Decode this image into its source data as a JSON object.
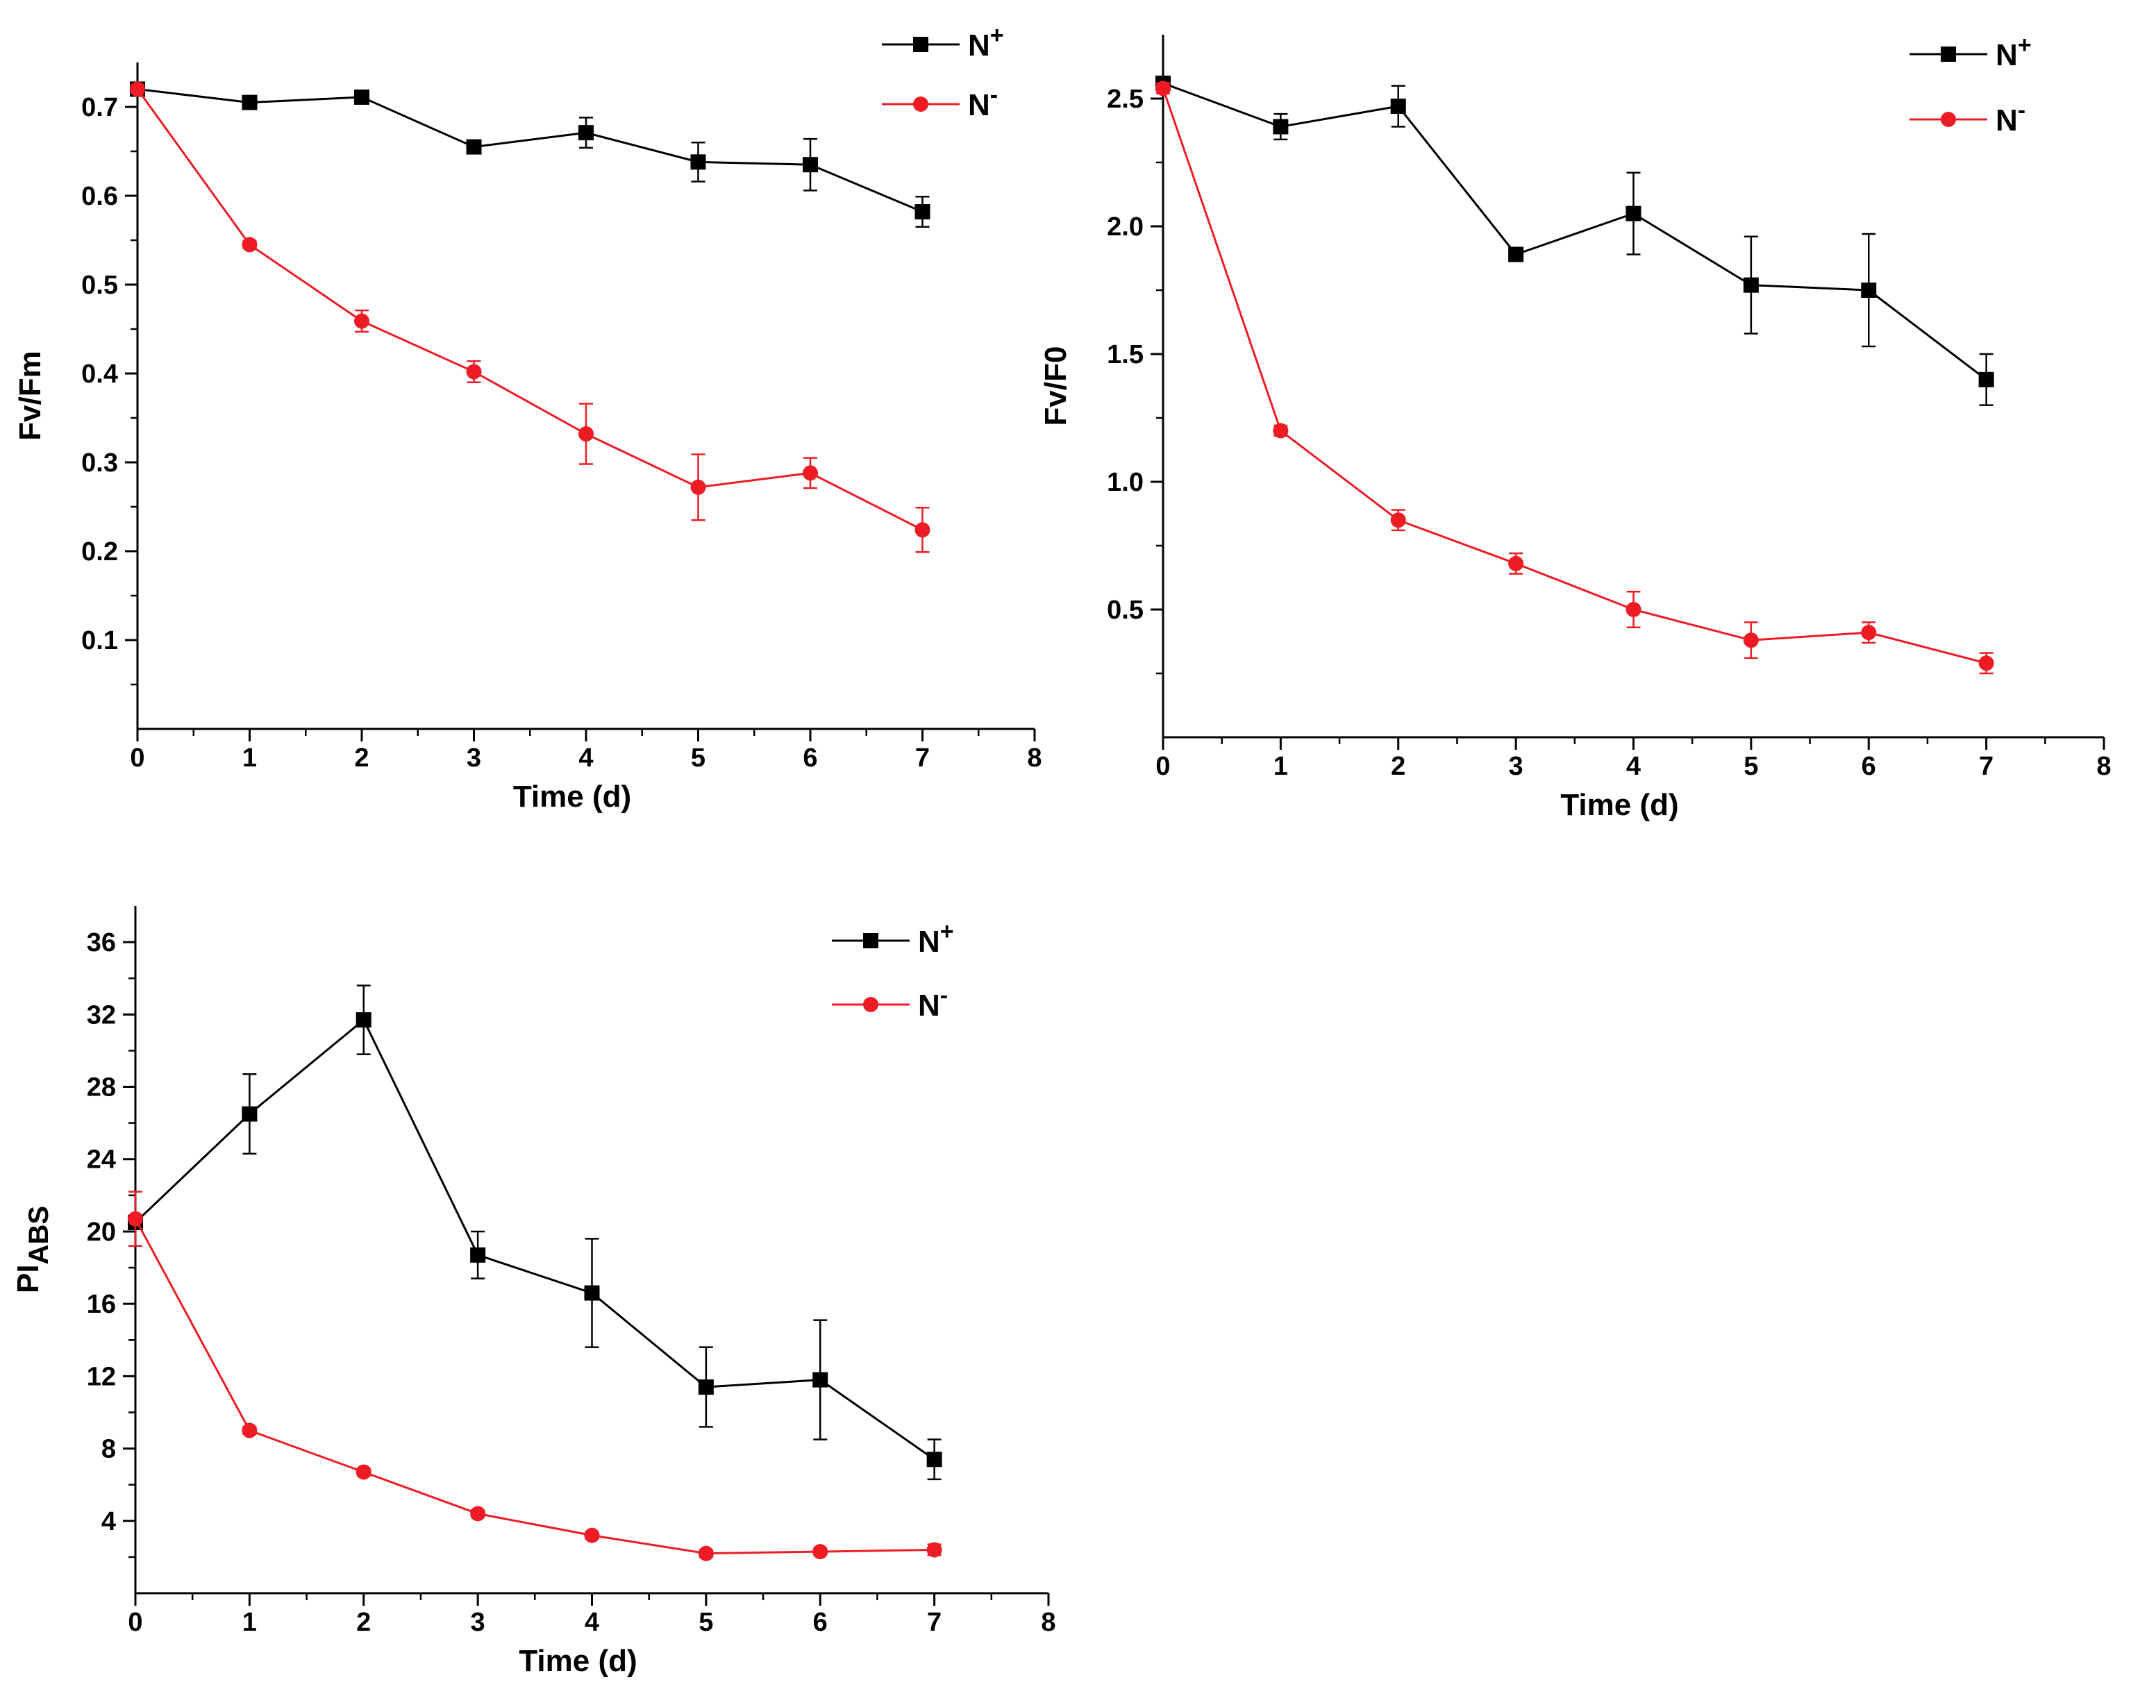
{
  "colors": {
    "n_plus": "#000000",
    "n_minus": "#ed1c24",
    "axis": "#000000"
  },
  "chart_data": [
    {
      "id": "fvfm",
      "type": "line",
      "title": "",
      "xlabel": "Time (d)",
      "ylabel": "Fv/Fm",
      "xlim": [
        0,
        8
      ],
      "ylim": [
        0,
        0.75
      ],
      "x_ticks": [
        "0",
        "1",
        "2",
        "3",
        "4",
        "5",
        "6",
        "7",
        "8"
      ],
      "y_ticks": [
        "0.1",
        "0.2",
        "0.3",
        "0.4",
        "0.5",
        "0.6",
        "0.7"
      ],
      "y_tick_values": [
        0.1,
        0.2,
        0.3,
        0.4,
        0.5,
        0.6,
        0.7
      ],
      "grid": false,
      "legend_position": "top-right",
      "x": [
        0,
        1,
        2,
        3,
        4,
        5,
        6,
        7
      ],
      "series": [
        {
          "name": "N+",
          "base": "N",
          "sup": "+",
          "marker": "square",
          "color": "#000000",
          "values": [
            0.72,
            0.705,
            0.711,
            0.655,
            0.671,
            0.638,
            0.635,
            0.582
          ],
          "errors": [
            0.005,
            0.004,
            0.004,
            0.005,
            0.017,
            0.022,
            0.029,
            0.017
          ]
        },
        {
          "name": "N-",
          "base": "N",
          "sup": "-",
          "marker": "circle",
          "color": "#ed1c24",
          "values": [
            0.72,
            0.545,
            0.459,
            0.402,
            0.332,
            0.272,
            0.288,
            0.224
          ],
          "errors": [
            0.005,
            0.004,
            0.012,
            0.012,
            0.034,
            0.037,
            0.017,
            0.025
          ]
        }
      ]
    },
    {
      "id": "fvf0",
      "type": "line",
      "title": "",
      "xlabel": "Time (d)",
      "ylabel": "Fv/F0",
      "xlim": [
        0,
        8
      ],
      "ylim": [
        0,
        2.75
      ],
      "x_ticks": [
        "0",
        "1",
        "2",
        "3",
        "4",
        "5",
        "6",
        "7",
        "8"
      ],
      "y_ticks": [
        "0.5",
        "1.0",
        "1.5",
        "2.0",
        "2.5"
      ],
      "y_tick_values": [
        0.5,
        1.0,
        1.5,
        2.0,
        2.5
      ],
      "grid": false,
      "legend_position": "top-right",
      "x": [
        0,
        1,
        2,
        3,
        4,
        5,
        6,
        7
      ],
      "series": [
        {
          "name": "N+",
          "base": "N",
          "sup": "+",
          "marker": "square",
          "color": "#000000",
          "values": [
            2.56,
            2.39,
            2.47,
            1.89,
            2.05,
            1.77,
            1.75,
            1.4
          ],
          "errors": [
            0.02,
            0.05,
            0.08,
            0.02,
            0.16,
            0.19,
            0.22,
            0.1
          ]
        },
        {
          "name": "N-",
          "base": "N",
          "sup": "-",
          "marker": "circle",
          "color": "#ed1c24",
          "values": [
            2.54,
            1.2,
            0.85,
            0.68,
            0.5,
            0.38,
            0.41,
            0.29
          ],
          "errors": [
            0.02,
            0.02,
            0.04,
            0.04,
            0.07,
            0.07,
            0.04,
            0.04
          ]
        }
      ]
    },
    {
      "id": "piabs",
      "type": "line",
      "title": "",
      "xlabel": "Time (d)",
      "ylabel": "PI",
      "ylabel_sub": "ABS",
      "xlim": [
        0,
        8
      ],
      "ylim": [
        0,
        38
      ],
      "x_ticks": [
        "0",
        "1",
        "2",
        "3",
        "4",
        "5",
        "6",
        "7",
        "8"
      ],
      "y_ticks": [
        "4",
        "8",
        "12",
        "16",
        "20",
        "24",
        "28",
        "32",
        "36"
      ],
      "y_tick_values": [
        4,
        8,
        12,
        16,
        20,
        24,
        28,
        32,
        36
      ],
      "grid": false,
      "legend_position": "top-right",
      "x": [
        0,
        1,
        2,
        3,
        4,
        5,
        6,
        7
      ],
      "series": [
        {
          "name": "N+",
          "base": "N",
          "sup": "+",
          "marker": "square",
          "color": "#000000",
          "values": [
            20.5,
            26.5,
            31.7,
            18.7,
            16.6,
            11.4,
            11.8,
            7.4
          ],
          "errors": [
            0.3,
            2.2,
            1.9,
            1.3,
            3.0,
            2.2,
            3.3,
            1.1
          ]
        },
        {
          "name": "N-",
          "base": "N",
          "sup": "-",
          "marker": "circle",
          "color": "#ed1c24",
          "values": [
            20.7,
            9.0,
            6.7,
            4.4,
            3.2,
            2.2,
            2.3,
            2.4
          ],
          "errors": [
            1.5,
            0.2,
            0.2,
            0.2,
            0.2,
            0.2,
            0.2,
            0.3
          ]
        }
      ]
    }
  ]
}
